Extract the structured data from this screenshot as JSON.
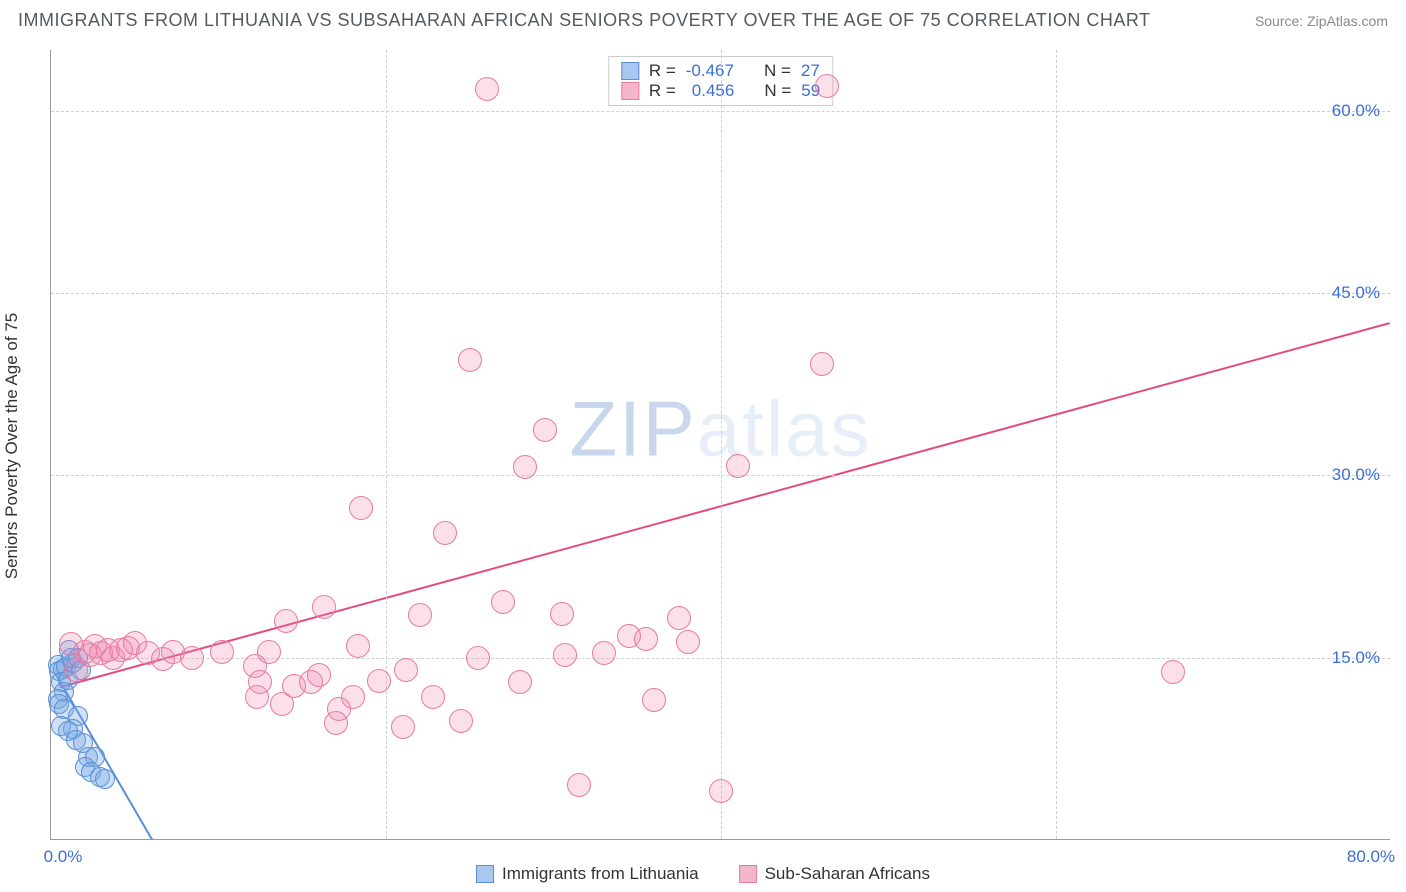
{
  "title": "IMMIGRANTS FROM LITHUANIA VS SUBSAHARAN AFRICAN SENIORS POVERTY OVER THE AGE OF 75 CORRELATION CHART",
  "source": "Source: ZipAtlas.com",
  "y_axis_label": "Seniors Poverty Over the Age of 75",
  "watermark_a": "ZIP",
  "watermark_b": "atlas",
  "chart": {
    "type": "scatter",
    "xlim": [
      0,
      80
    ],
    "ylim": [
      0,
      65
    ],
    "x_ticks": [
      0,
      80
    ],
    "x_tick_labels": [
      "0.0%",
      "80.0%"
    ],
    "y_ticks": [
      15,
      30,
      45,
      60
    ],
    "y_tick_labels": [
      "15.0%",
      "30.0%",
      "45.0%",
      "60.0%"
    ],
    "background_color": "#ffffff",
    "grid_color": "#d0d0d0",
    "axis_color": "#999999",
    "tick_label_color": "#3b6fd6",
    "series": [
      {
        "name": "Immigrants from Lithuania",
        "marker_fill": "rgba(120,170,230,0.35)",
        "marker_stroke": "#5a8fd6",
        "swatch_fill": "#a9c7ef",
        "r_value": "-0.467",
        "n_value": "27",
        "trend": {
          "x1": 0.3,
          "y1": 13.5,
          "x2": 6,
          "y2": 0,
          "dash_ext_x": 10,
          "stroke": "#5a8fd6"
        },
        "points": [
          [
            0.4,
            14.4
          ],
          [
            0.5,
            13.9
          ],
          [
            0.7,
            14.1
          ],
          [
            0.6,
            13.0
          ],
          [
            0.9,
            14.2
          ],
          [
            1.0,
            13.2
          ],
          [
            0.8,
            12.2
          ],
          [
            0.4,
            11.6
          ],
          [
            0.5,
            11.2
          ],
          [
            1.1,
            15.6
          ],
          [
            1.3,
            14.6
          ],
          [
            1.2,
            15.0
          ],
          [
            0.8,
            10.8
          ],
          [
            1.6,
            10.2
          ],
          [
            1.3,
            9.1
          ],
          [
            0.6,
            9.4
          ],
          [
            1.0,
            9.0
          ],
          [
            1.5,
            8.2
          ],
          [
            1.9,
            8.0
          ],
          [
            2.2,
            6.8
          ],
          [
            2.6,
            6.8
          ],
          [
            2.0,
            6.0
          ],
          [
            2.4,
            5.6
          ],
          [
            2.9,
            5.2
          ],
          [
            3.2,
            5.0
          ],
          [
            1.6,
            15.0
          ],
          [
            1.8,
            14.0
          ]
        ]
      },
      {
        "name": "Sub-Saharan Africans",
        "marker_fill": "rgba(240,130,170,0.25)",
        "marker_stroke": "#e77aa2",
        "swatch_fill": "#f3b7cc",
        "r_value": "0.456",
        "n_value": "59",
        "trend": {
          "x1": 0.5,
          "y1": 12.5,
          "x2": 80,
          "y2": 42.5,
          "stroke": "#e24b82"
        },
        "points": [
          [
            1.2,
            16.1
          ],
          [
            1.5,
            14.0
          ],
          [
            2.0,
            15.5
          ],
          [
            2.3,
            15.2
          ],
          [
            2.6,
            16.0
          ],
          [
            3.0,
            15.4
          ],
          [
            3.4,
            15.6
          ],
          [
            3.7,
            15.0
          ],
          [
            4.2,
            15.6
          ],
          [
            4.6,
            15.8
          ],
          [
            5.0,
            16.2
          ],
          [
            5.8,
            15.4
          ],
          [
            6.7,
            14.9
          ],
          [
            7.3,
            15.5
          ],
          [
            8.4,
            15.0
          ],
          [
            10.2,
            15.5
          ],
          [
            12.3,
            11.8
          ],
          [
            12.2,
            14.3
          ],
          [
            12.5,
            13.0
          ],
          [
            13.0,
            15.5
          ],
          [
            13.8,
            11.2
          ],
          [
            14.5,
            12.7
          ],
          [
            14.0,
            18.0
          ],
          [
            15.5,
            13.0
          ],
          [
            16.0,
            13.6
          ],
          [
            16.3,
            19.2
          ],
          [
            17.0,
            9.6
          ],
          [
            17.2,
            10.8
          ],
          [
            18.0,
            11.8
          ],
          [
            18.3,
            16.0
          ],
          [
            18.5,
            27.3
          ],
          [
            19.6,
            13.1
          ],
          [
            21.0,
            9.3
          ],
          [
            21.2,
            14.0
          ],
          [
            22.0,
            18.5
          ],
          [
            22.8,
            11.8
          ],
          [
            23.5,
            25.3
          ],
          [
            24.5,
            9.8
          ],
          [
            25.5,
            15.0
          ],
          [
            25.0,
            39.5
          ],
          [
            26.0,
            61.8
          ],
          [
            27.0,
            19.6
          ],
          [
            28.0,
            13.0
          ],
          [
            28.3,
            30.7
          ],
          [
            29.5,
            33.7
          ],
          [
            30.5,
            18.6
          ],
          [
            31.5,
            4.5
          ],
          [
            33.0,
            15.4
          ],
          [
            34.5,
            16.8
          ],
          [
            36.0,
            11.5
          ],
          [
            37.5,
            18.3
          ],
          [
            38.0,
            16.3
          ],
          [
            41.0,
            30.8
          ],
          [
            40.0,
            4.0
          ],
          [
            46.0,
            39.2
          ],
          [
            46.3,
            62.0
          ],
          [
            67.0,
            13.8
          ],
          [
            35.5,
            16.5
          ],
          [
            30.7,
            15.2
          ]
        ]
      }
    ]
  },
  "stats_box": {
    "r_label": "R =",
    "n_label": "N ="
  },
  "legend": {
    "items": [
      "Immigrants from Lithuania",
      "Sub-Saharan Africans"
    ]
  }
}
